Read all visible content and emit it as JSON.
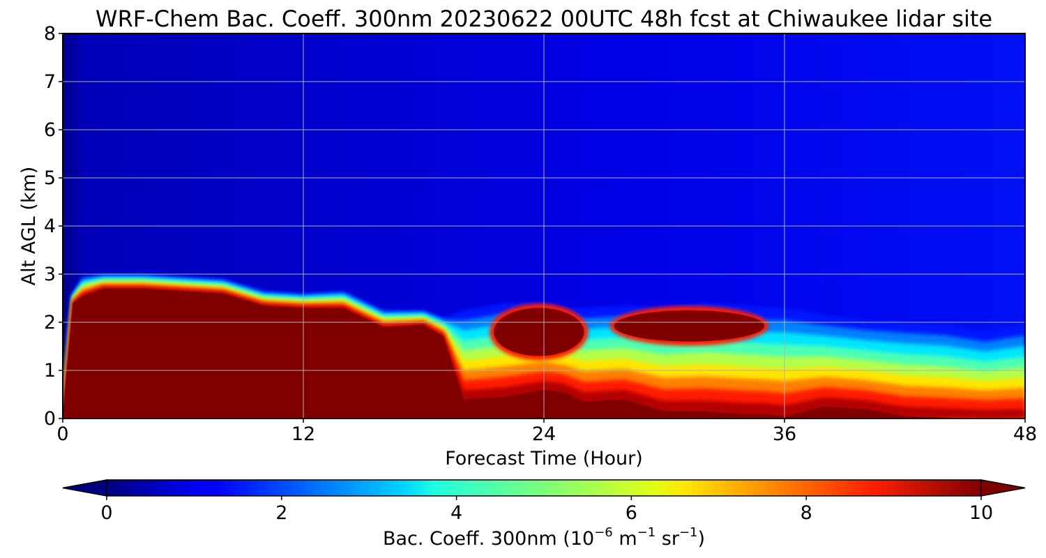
{
  "chart_data": {
    "type": "heatmap",
    "title": "WRF-Chem Bac. Coeff. 300nm  20230622 00UTC 48h fcst at Chiwaukee lidar site",
    "xlabel": "Forecast Time (Hour)",
    "ylabel": "Alt AGL (km)",
    "xlim": [
      0,
      48
    ],
    "ylim": [
      0,
      8
    ],
    "xticks": [
      0,
      12,
      24,
      36,
      48
    ],
    "yticks": [
      0,
      1,
      2,
      3,
      4,
      5,
      6,
      7,
      8
    ],
    "grid": true,
    "colormap": "jet",
    "colorbar": {
      "label_main": "Bac. Coeff. 300nm  (10",
      "label_exp1": "−6",
      "label_mid": " m",
      "label_exp2": "−1",
      "label_mid2": " sr",
      "label_exp3": "−1",
      "label_end": ")",
      "range": [
        0,
        10
      ],
      "ticks": [
        0,
        2,
        4,
        6,
        8,
        10
      ],
      "extend": "both",
      "orientation": "horizontal"
    },
    "field_description": {
      "times": [
        0,
        0.5,
        1,
        2,
        4,
        6,
        8,
        10,
        12,
        14,
        16,
        18,
        19,
        20,
        22,
        24,
        25,
        26,
        28,
        30,
        32,
        34,
        35,
        36,
        38,
        40,
        42,
        44,
        46,
        48
      ],
      "high_layer_top_km": [
        0.1,
        2.4,
        2.55,
        2.7,
        2.7,
        2.65,
        2.6,
        2.35,
        2.3,
        2.3,
        1.9,
        1.95,
        1.7,
        0.4,
        0.45,
        0.6,
        0.55,
        0.35,
        0.4,
        0.15,
        0.15,
        0.1,
        0.1,
        0.05,
        0.25,
        0.2,
        0.05,
        0.02,
        0.0,
        0.0
      ],
      "aerosol_layer_top_km": [
        0.3,
        2.6,
        2.95,
        3.0,
        3.0,
        2.95,
        2.9,
        2.65,
        2.6,
        2.65,
        2.25,
        2.25,
        2.1,
        2.25,
        2.4,
        2.4,
        2.3,
        2.3,
        2.35,
        2.3,
        2.4,
        2.35,
        2.3,
        2.3,
        2.15,
        2.05,
        2.0,
        1.95,
        1.8,
        1.95
      ],
      "elevated_max_patches": [
        {
          "t_range": [
            21.5,
            26
          ],
          "z_range": [
            1.3,
            2.3
          ],
          "value": 10
        },
        {
          "t_range": [
            27.5,
            35
          ],
          "z_range": [
            1.6,
            2.25
          ],
          "value": 10
        }
      ],
      "background_aloft_value": 0.9,
      "max_value": 10
    }
  }
}
